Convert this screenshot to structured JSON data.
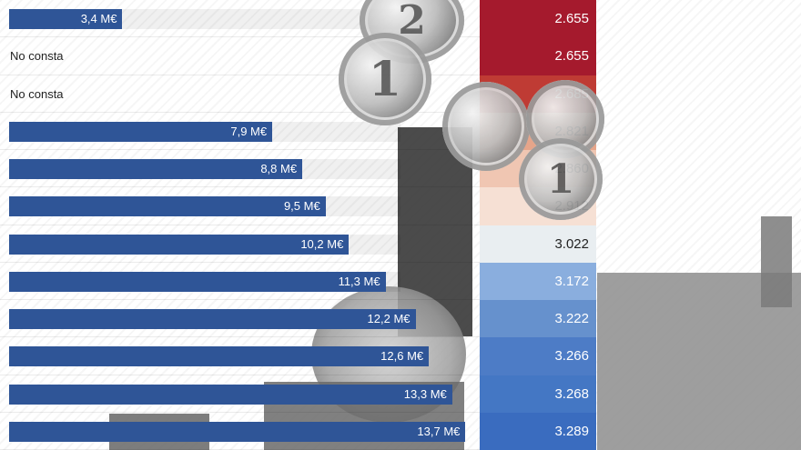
{
  "chart_data": {
    "type": "bar",
    "rows": [
      {
        "bar_value": 3.4,
        "bar_label": "3,4 M€",
        "value_label": "2.655",
        "value": 2655,
        "cell_color": "#a51a2d"
      },
      {
        "bar_value": null,
        "bar_label": "No consta",
        "value_label": "2.655",
        "value": 2655,
        "cell_color": "#a51a2d"
      },
      {
        "bar_value": null,
        "bar_label": "No consta",
        "value_label": "2.685",
        "value": 2685,
        "cell_color": "#bf3b34"
      },
      {
        "bar_value": 7.9,
        "bar_label": "7,9 M€",
        "value_label": "2.821",
        "value": 2821,
        "cell_color": "#e6a58a"
      },
      {
        "bar_value": 8.8,
        "bar_label": "8,8 M€",
        "value_label": "2.860",
        "value": 2860,
        "cell_color": "#f0c6b2"
      },
      {
        "bar_value": 9.5,
        "bar_label": "9,5 M€",
        "value_label": "2.912",
        "value": 2912,
        "cell_color": "#f6e0d4"
      },
      {
        "bar_value": 10.2,
        "bar_label": "10,2 M€",
        "value_label": "3.022",
        "value": 3022,
        "cell_color": "#e9eef1"
      },
      {
        "bar_value": 11.3,
        "bar_label": "11,3 M€",
        "value_label": "3.172",
        "value": 3172,
        "cell_color": "#8aaede"
      },
      {
        "bar_value": 12.2,
        "bar_label": "12,2 M€",
        "value_label": "3.222",
        "value": 3222,
        "cell_color": "#6691cd"
      },
      {
        "bar_value": 12.6,
        "bar_label": "12,6 M€",
        "value_label": "3.266",
        "value": 3266,
        "cell_color": "#4d7cc6"
      },
      {
        "bar_value": 13.3,
        "bar_label": "13,3 M€",
        "value_label": "3.268",
        "value": 3268,
        "cell_color": "#4477c4"
      },
      {
        "bar_value": 13.7,
        "bar_label": "13,7 M€",
        "value_label": "3.289",
        "value": 3289,
        "cell_color": "#3a6cbf"
      }
    ]
  },
  "colors": {
    "bar": "#2f5597",
    "track": "#ececec"
  },
  "icons": [
    "euro-coin-icon",
    "clock-tower-icon",
    "building-icon"
  ]
}
